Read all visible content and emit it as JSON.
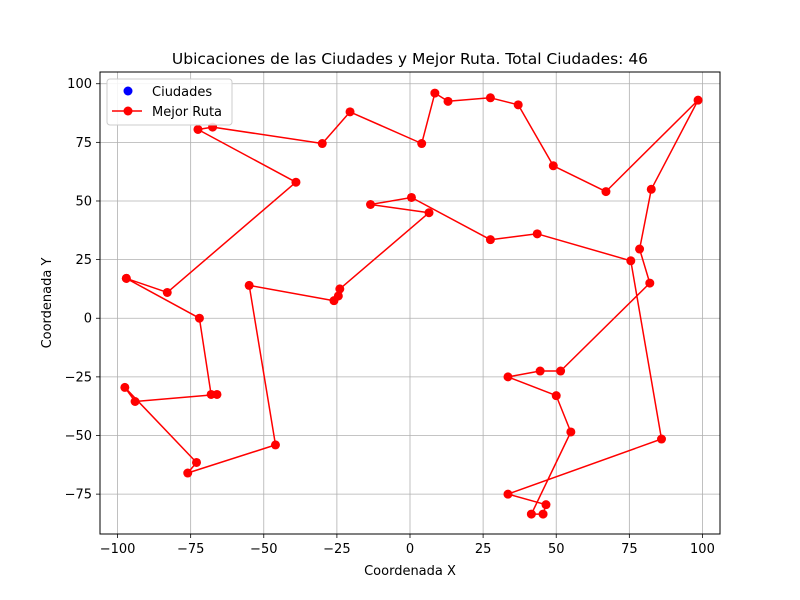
{
  "chart_data": {
    "type": "line",
    "title": "Ubicaciones de las Ciudades y Mejor Ruta. Total Ciudades: 46",
    "xlabel": "Coordenada X",
    "ylabel": "Coordenada Y",
    "xlim": [
      -106,
      106
    ],
    "ylim": [
      -92,
      105
    ],
    "xticks": [
      -100,
      -75,
      -50,
      -25,
      0,
      25,
      50,
      75,
      100
    ],
    "yticks": [
      -75,
      -50,
      -25,
      0,
      25,
      50,
      75,
      100
    ],
    "grid": true,
    "legend_position": "top-left",
    "legend": [
      {
        "label": "Ciudades",
        "marker": "circle",
        "color": "#0000ff"
      },
      {
        "label": "Mejor Ruta",
        "marker": "line-circle",
        "color": "#ff0000"
      }
    ],
    "series": [
      {
        "name": "Mejor Ruta",
        "color": "#ff0000",
        "points": [
          [
            -97,
            17
          ],
          [
            -72,
            0
          ],
          [
            -68,
            -32.5
          ],
          [
            -66,
            -32.5
          ],
          [
            -94,
            -35.5
          ],
          [
            -97.5,
            -29.5
          ],
          [
            -73,
            -61.5
          ],
          [
            -76,
            -66
          ],
          [
            -46,
            -54
          ],
          [
            -55,
            14
          ],
          [
            -26,
            7.5
          ],
          [
            -24.5,
            9.5
          ],
          [
            -24,
            12.5
          ],
          [
            6.5,
            45
          ],
          [
            -13.5,
            48.5
          ],
          [
            0.5,
            51.5
          ],
          [
            27.5,
            33.5
          ],
          [
            43.5,
            36
          ],
          [
            75.5,
            24.5
          ],
          [
            86,
            -51.5
          ],
          [
            33.5,
            -75
          ],
          [
            46.5,
            -79.5
          ],
          [
            45.5,
            -83.5
          ],
          [
            41.5,
            -83.5
          ],
          [
            55,
            -48.5
          ],
          [
            50,
            -33
          ],
          [
            33.5,
            -25
          ],
          [
            44.5,
            -22.5
          ],
          [
            51.5,
            -22.5
          ],
          [
            82,
            15
          ],
          [
            78.5,
            29.5
          ],
          [
            82.5,
            55
          ],
          [
            98.5,
            93
          ],
          [
            67,
            54
          ],
          [
            49,
            65
          ],
          [
            37,
            91
          ],
          [
            27.5,
            94
          ],
          [
            13,
            92.5
          ],
          [
            8.5,
            96
          ],
          [
            4,
            74.5
          ],
          [
            -20.5,
            88
          ],
          [
            -30,
            74.5
          ],
          [
            -67.5,
            81.5
          ],
          [
            -72.5,
            80.5
          ],
          [
            -39,
            58
          ],
          [
            -83,
            11
          ],
          [
            -97,
            17
          ]
        ]
      }
    ]
  }
}
